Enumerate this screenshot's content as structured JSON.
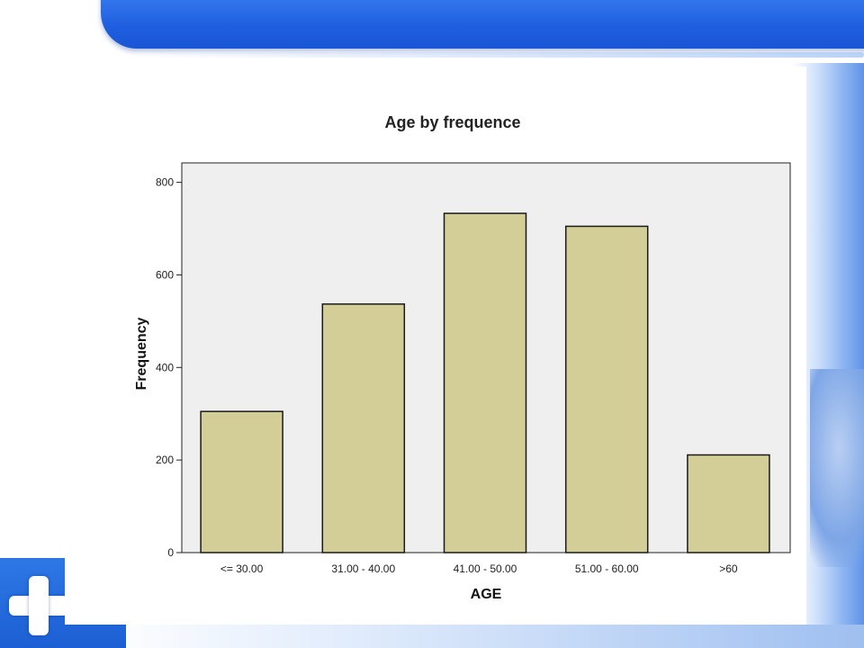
{
  "chart_data": {
    "type": "bar",
    "title": "Age by frequence",
    "xlabel": "AGE",
    "ylabel": "Frequency",
    "categories": [
      "<= 30.00",
      "31.00 - 40.00",
      "41.00 - 50.00",
      "51.00 - 60.00",
      ">60"
    ],
    "values": [
      305,
      537,
      733,
      705,
      211
    ],
    "ylim": [
      0,
      842
    ],
    "yticks": [
      0,
      200,
      400,
      600,
      800
    ],
    "grid": false,
    "colors": {
      "bar_fill": "#d3cd98",
      "bar_stroke": "#1a1a1a",
      "plot_background": "#efefef"
    }
  }
}
